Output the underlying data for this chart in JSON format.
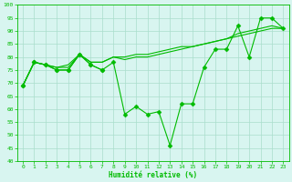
{
  "xlabel": "Humidité relative (%)",
  "background_color": "#d8f5f0",
  "grid_color": "#aaddcc",
  "line_color": "#00bb00",
  "xlim": [
    -0.5,
    23.5
  ],
  "ylim": [
    40,
    100
  ],
  "yticks": [
    40,
    45,
    50,
    55,
    60,
    65,
    70,
    75,
    80,
    85,
    90,
    95,
    100
  ],
  "xticks": [
    0,
    1,
    2,
    3,
    4,
    5,
    6,
    7,
    8,
    9,
    10,
    11,
    12,
    13,
    14,
    15,
    16,
    17,
    18,
    19,
    20,
    21,
    22,
    23
  ],
  "series": [
    {
      "x": [
        0,
        1,
        2,
        3,
        4,
        5,
        6,
        7,
        8,
        9,
        10,
        11,
        12,
        13,
        14,
        15,
        16,
        17,
        18,
        19,
        20,
        21,
        22,
        23
      ],
      "y": [
        69,
        78,
        77,
        75,
        75,
        81,
        77,
        75,
        78,
        58,
        61,
        58,
        59,
        46,
        62,
        62,
        76,
        83,
        83,
        92,
        80,
        95,
        95,
        91
      ],
      "marker": "D",
      "markersize": 2.5,
      "linewidth": 0.8
    },
    {
      "x": [
        0,
        1,
        2,
        3,
        4,
        5,
        6,
        7,
        8,
        9,
        10,
        11,
        12,
        13,
        14,
        15,
        16,
        17,
        18,
        19,
        20,
        21,
        22,
        23
      ],
      "y": [
        69,
        78,
        77,
        76,
        76,
        81,
        78,
        78,
        80,
        79,
        80,
        80,
        81,
        82,
        83,
        84,
        85,
        86,
        87,
        88,
        89,
        90,
        91,
        91
      ],
      "marker": null,
      "markersize": 0,
      "linewidth": 0.8
    },
    {
      "x": [
        0,
        1,
        2,
        3,
        4,
        5,
        6,
        7,
        8,
        9,
        10,
        11,
        12,
        13,
        14,
        15,
        16,
        17,
        18,
        19,
        20,
        21,
        22,
        23
      ],
      "y": [
        69,
        78,
        77,
        76,
        77,
        81,
        78,
        78,
        80,
        80,
        81,
        81,
        82,
        83,
        84,
        84,
        85,
        86,
        87,
        89,
        90,
        91,
        92,
        91
      ],
      "marker": null,
      "markersize": 0,
      "linewidth": 0.8
    },
    {
      "x": [
        0,
        1,
        2,
        3,
        4,
        5,
        6,
        7
      ],
      "y": [
        69,
        78,
        77,
        75,
        75,
        81,
        77,
        75
      ],
      "marker": "D",
      "markersize": 2.5,
      "linewidth": 0.8
    }
  ]
}
